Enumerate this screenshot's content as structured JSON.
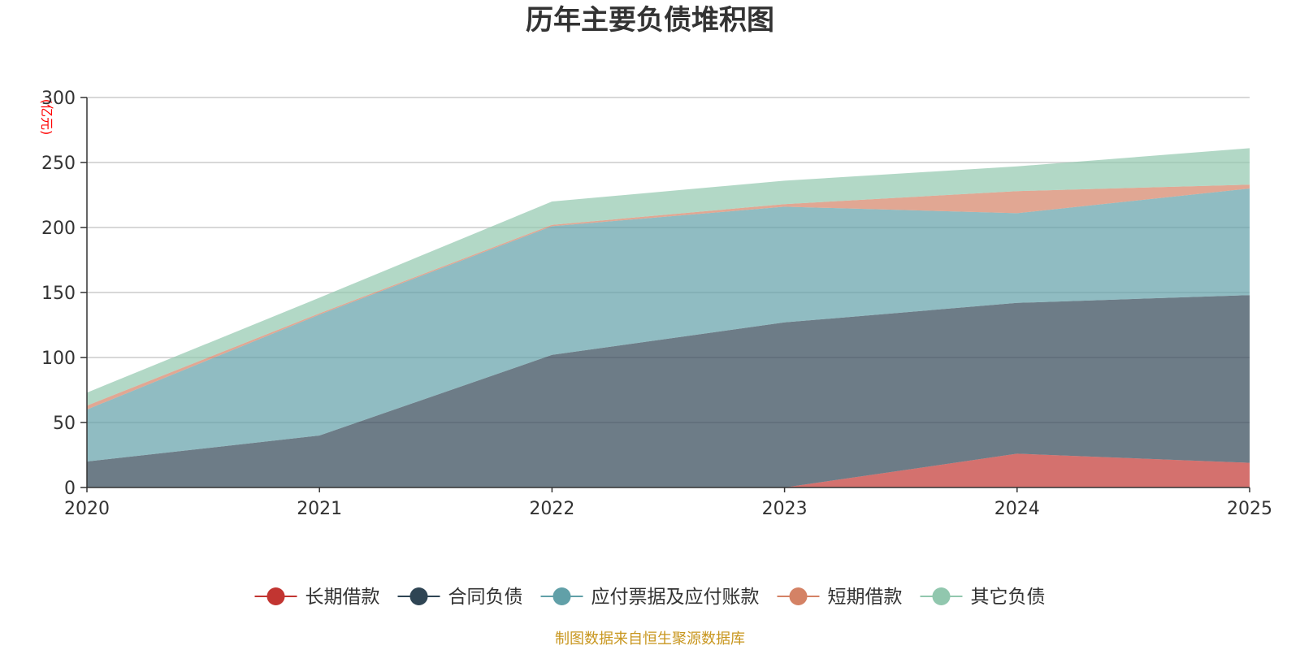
{
  "chart_data": {
    "type": "area",
    "stacked": true,
    "title": "历年主要负债堆积图",
    "xlabel": "",
    "ylabel": "(亿元)",
    "categories": [
      "2020",
      "2021",
      "2022",
      "2023",
      "2024",
      "2025"
    ],
    "ylim": [
      0,
      300
    ],
    "yticks": [
      "0",
      "50",
      "100",
      "150",
      "200",
      "250",
      "300"
    ],
    "grid": true,
    "legend_position": "bottom",
    "series": [
      {
        "name": "长期借款",
        "color": "#c23531",
        "values": [
          0,
          0,
          0,
          0,
          26,
          19
        ]
      },
      {
        "name": "合同负债",
        "color": "#2f4554",
        "values": [
          20,
          40,
          102,
          127,
          116,
          129
        ]
      },
      {
        "name": "应付票据及应付账款",
        "color": "#61a0a8",
        "values": [
          40,
          93,
          99,
          89,
          69,
          82
        ]
      },
      {
        "name": "短期借款",
        "color": "#d48265",
        "values": [
          3,
          1,
          1,
          2,
          17,
          3
        ]
      },
      {
        "name": "其它负债",
        "color": "#91c7ae",
        "values": [
          10,
          12,
          18,
          18,
          19,
          28
        ]
      }
    ],
    "unit_color": "#ff0000",
    "source": "制图数据来自恒生聚源数据库",
    "source_color": "#c8961e"
  }
}
